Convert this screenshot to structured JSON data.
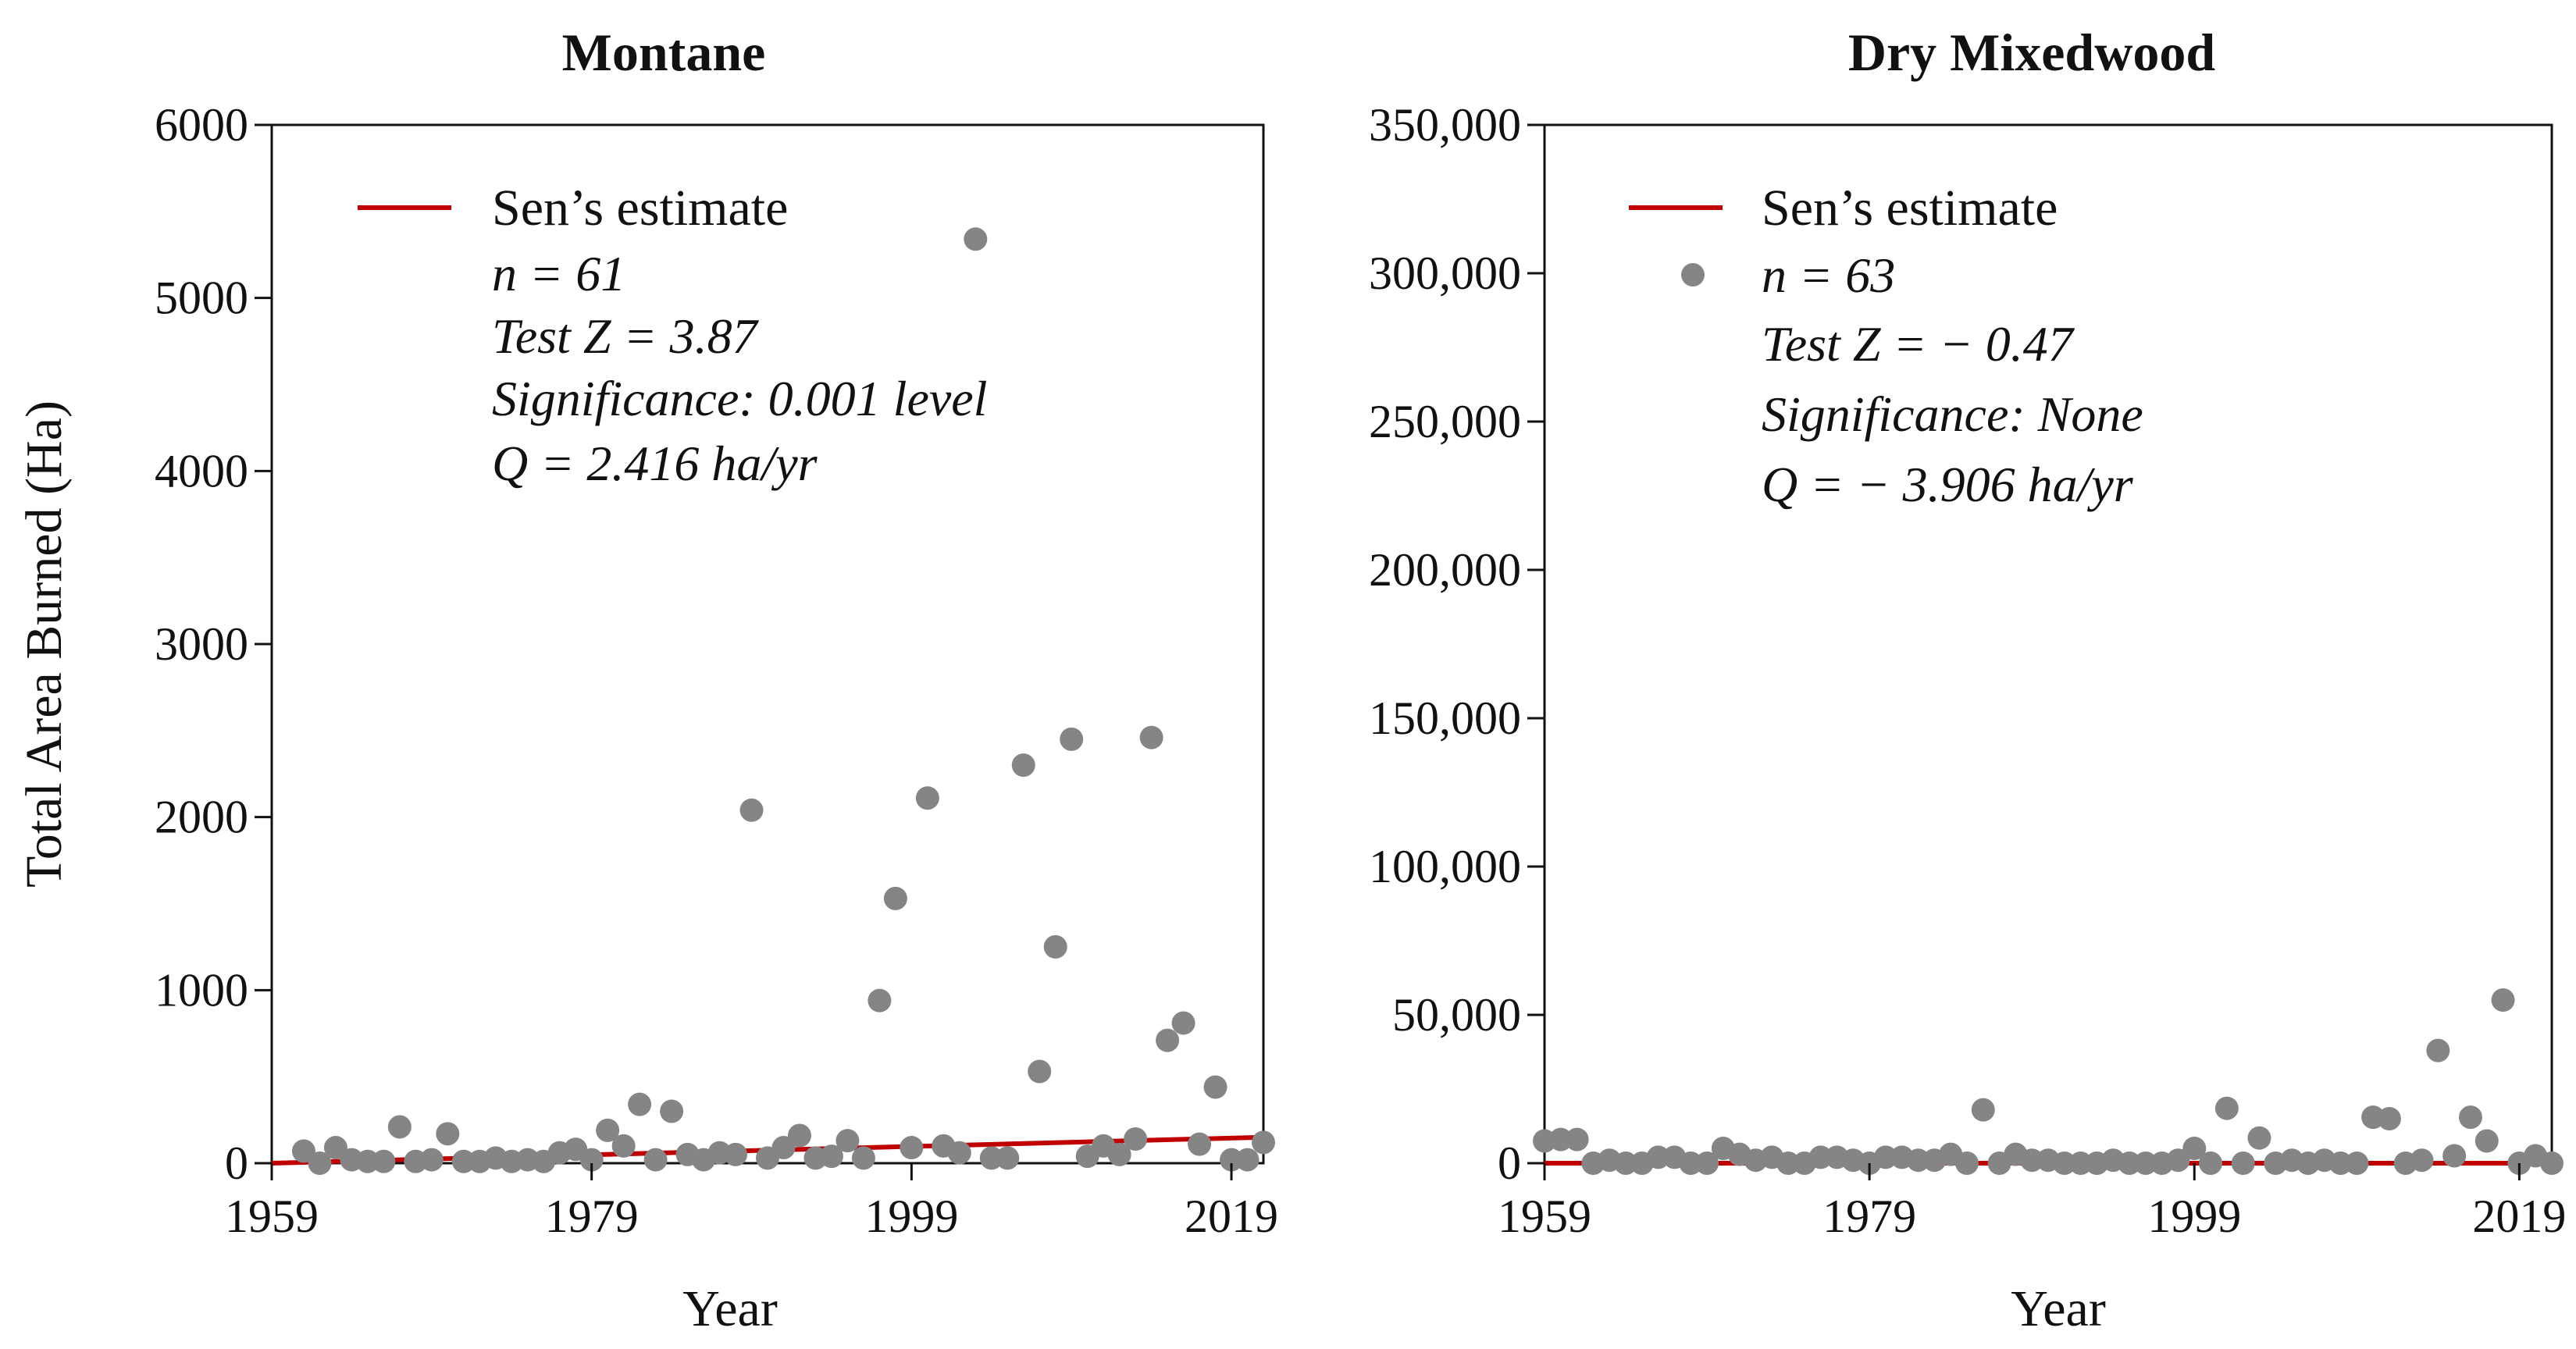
{
  "colors": {
    "point": "#858585",
    "trend": "#c00000",
    "axis": "#111111"
  },
  "chart_data": [
    {
      "type": "scatter",
      "title": "Montane",
      "xlabel": "Year",
      "ylabel": "Total Area Burned (Ha)",
      "xlim": [
        1959,
        2021
      ],
      "ylim": [
        0,
        6000
      ],
      "xticks": [
        1959,
        1979,
        1999,
        2019
      ],
      "yticks": [
        0,
        1000,
        2000,
        3000,
        4000,
        5000,
        6000
      ],
      "ytick_labels": [
        "0",
        "1000",
        "2000",
        "3000",
        "4000",
        "5000",
        "6000"
      ],
      "x": [
        1961,
        1962,
        1963,
        1964,
        1965,
        1966,
        1967,
        1968,
        1969,
        1970,
        1971,
        1972,
        1973,
        1974,
        1975,
        1976,
        1977,
        1978,
        1979,
        1980,
        1981,
        1982,
        1983,
        1984,
        1985,
        1986,
        1987,
        1988,
        1989,
        1990,
        1991,
        1992,
        1993,
        1994,
        1995,
        1996,
        1997,
        1998,
        1999,
        2000,
        2001,
        2002,
        2003,
        2004,
        2005,
        2006,
        2007,
        2008,
        2009,
        2010,
        2011,
        2012,
        2013,
        2014,
        2015,
        2016,
        2017,
        2018,
        2019,
        2020,
        2021
      ],
      "y": [
        70,
        0,
        90,
        20,
        10,
        10,
        210,
        10,
        20,
        170,
        10,
        10,
        30,
        10,
        20,
        10,
        60,
        80,
        20,
        190,
        100,
        340,
        20,
        300,
        50,
        20,
        60,
        50,
        2040,
        30,
        90,
        160,
        30,
        40,
        130,
        30,
        940,
        1530,
        90,
        2110,
        100,
        60,
        5340,
        30,
        30,
        2300,
        530,
        1250,
        2450,
        40,
        100,
        50,
        140,
        2460,
        710,
        810,
        110,
        440,
        20,
        20,
        120
      ],
      "legend": {
        "label": "Sen’s estimate"
      },
      "stats": [
        "n = 61",
        "Test Z = 3.87",
        "Significance: 0.001 level",
        "Q = 2.416 ha/yr"
      ],
      "trend": {
        "x": [
          1959,
          2021
        ],
        "y": [
          0,
          150
        ]
      }
    },
    {
      "type": "scatter",
      "title": "Dry Mixedwood",
      "xlabel": "Year",
      "ylabel": "",
      "xlim": [
        1959,
        2021
      ],
      "ylim": [
        0,
        350000
      ],
      "xticks": [
        1959,
        1979,
        1999,
        2019
      ],
      "yticks": [
        0,
        50000,
        100000,
        150000,
        200000,
        250000,
        300000,
        350000
      ],
      "ytick_labels": [
        "0",
        "50,000",
        "100,000",
        "150,000",
        "200,000",
        "250,000",
        "300,000",
        "350,000"
      ],
      "x": [
        1959,
        1960,
        1961,
        1962,
        1963,
        1964,
        1965,
        1966,
        1967,
        1968,
        1969,
        1970,
        1971,
        1972,
        1973,
        1974,
        1975,
        1976,
        1977,
        1978,
        1979,
        1980,
        1981,
        1982,
        1983,
        1984,
        1985,
        1986,
        1987,
        1988,
        1989,
        1990,
        1991,
        1992,
        1993,
        1994,
        1995,
        1996,
        1997,
        1998,
        1999,
        2000,
        2001,
        2002,
        2003,
        2004,
        2005,
        2006,
        2007,
        2008,
        2009,
        2010,
        2011,
        2012,
        2013,
        2014,
        2015,
        2016,
        2017,
        2018,
        2019,
        2020,
        2021
      ],
      "y": [
        7500,
        8000,
        8000,
        0,
        1000,
        0,
        0,
        2000,
        2000,
        0,
        0,
        5000,
        3000,
        1000,
        2000,
        0,
        0,
        2000,
        2000,
        1000,
        0,
        2000,
        2000,
        1000,
        1000,
        3000,
        0,
        18000,
        0,
        3000,
        1000,
        1000,
        0,
        0,
        0,
        1000,
        0,
        0,
        0,
        1000,
        5000,
        0,
        18500,
        0,
        8500,
        0,
        1000,
        0,
        1000,
        0,
        0,
        15500,
        15000,
        0,
        1000,
        38000,
        2500,
        15500,
        7500,
        55000,
        0,
        2500,
        0
      ],
      "legend": {
        "label": "Sen’s estimate"
      },
      "stats": [
        "n = 63",
        "Test Z = − 0.47",
        "Significance: None",
        "Q = − 3.906 ha/yr"
      ],
      "trend": {
        "x": [
          1959,
          2021
        ],
        "y": [
          0,
          0
        ]
      }
    }
  ]
}
